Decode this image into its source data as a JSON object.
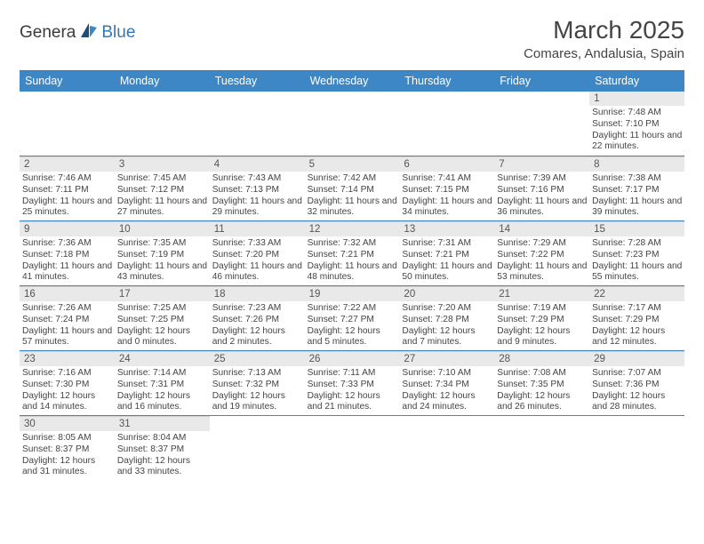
{
  "logo": {
    "part1": "Genera",
    "part2": "Blue"
  },
  "title": "March 2025",
  "location": "Comares, Andalusia, Spain",
  "day_names": [
    "Sunday",
    "Monday",
    "Tuesday",
    "Wednesday",
    "Thursday",
    "Friday",
    "Saturday"
  ],
  "colors": {
    "header_bg": "#3d87c7",
    "header_text": "#ffffff",
    "daynum_bg": "#e9e9e9",
    "daynum_text": "#555555",
    "border": "#3d87c7",
    "text": "#444444",
    "logo_blue": "#3277b3"
  },
  "weeks": [
    [
      {
        "empty": true
      },
      {
        "empty": true
      },
      {
        "empty": true
      },
      {
        "empty": true
      },
      {
        "empty": true
      },
      {
        "empty": true
      },
      {
        "day": "1",
        "sunrise": "Sunrise: 7:48 AM",
        "sunset": "Sunset: 7:10 PM",
        "daylight": "Daylight: 11 hours and 22 minutes."
      }
    ],
    [
      {
        "day": "2",
        "sunrise": "Sunrise: 7:46 AM",
        "sunset": "Sunset: 7:11 PM",
        "daylight": "Daylight: 11 hours and 25 minutes."
      },
      {
        "day": "3",
        "sunrise": "Sunrise: 7:45 AM",
        "sunset": "Sunset: 7:12 PM",
        "daylight": "Daylight: 11 hours and 27 minutes."
      },
      {
        "day": "4",
        "sunrise": "Sunrise: 7:43 AM",
        "sunset": "Sunset: 7:13 PM",
        "daylight": "Daylight: 11 hours and 29 minutes."
      },
      {
        "day": "5",
        "sunrise": "Sunrise: 7:42 AM",
        "sunset": "Sunset: 7:14 PM",
        "daylight": "Daylight: 11 hours and 32 minutes."
      },
      {
        "day": "6",
        "sunrise": "Sunrise: 7:41 AM",
        "sunset": "Sunset: 7:15 PM",
        "daylight": "Daylight: 11 hours and 34 minutes."
      },
      {
        "day": "7",
        "sunrise": "Sunrise: 7:39 AM",
        "sunset": "Sunset: 7:16 PM",
        "daylight": "Daylight: 11 hours and 36 minutes."
      },
      {
        "day": "8",
        "sunrise": "Sunrise: 7:38 AM",
        "sunset": "Sunset: 7:17 PM",
        "daylight": "Daylight: 11 hours and 39 minutes."
      }
    ],
    [
      {
        "day": "9",
        "sunrise": "Sunrise: 7:36 AM",
        "sunset": "Sunset: 7:18 PM",
        "daylight": "Daylight: 11 hours and 41 minutes."
      },
      {
        "day": "10",
        "sunrise": "Sunrise: 7:35 AM",
        "sunset": "Sunset: 7:19 PM",
        "daylight": "Daylight: 11 hours and 43 minutes."
      },
      {
        "day": "11",
        "sunrise": "Sunrise: 7:33 AM",
        "sunset": "Sunset: 7:20 PM",
        "daylight": "Daylight: 11 hours and 46 minutes."
      },
      {
        "day": "12",
        "sunrise": "Sunrise: 7:32 AM",
        "sunset": "Sunset: 7:21 PM",
        "daylight": "Daylight: 11 hours and 48 minutes."
      },
      {
        "day": "13",
        "sunrise": "Sunrise: 7:31 AM",
        "sunset": "Sunset: 7:21 PM",
        "daylight": "Daylight: 11 hours and 50 minutes."
      },
      {
        "day": "14",
        "sunrise": "Sunrise: 7:29 AM",
        "sunset": "Sunset: 7:22 PM",
        "daylight": "Daylight: 11 hours and 53 minutes."
      },
      {
        "day": "15",
        "sunrise": "Sunrise: 7:28 AM",
        "sunset": "Sunset: 7:23 PM",
        "daylight": "Daylight: 11 hours and 55 minutes."
      }
    ],
    [
      {
        "day": "16",
        "sunrise": "Sunrise: 7:26 AM",
        "sunset": "Sunset: 7:24 PM",
        "daylight": "Daylight: 11 hours and 57 minutes."
      },
      {
        "day": "17",
        "sunrise": "Sunrise: 7:25 AM",
        "sunset": "Sunset: 7:25 PM",
        "daylight": "Daylight: 12 hours and 0 minutes."
      },
      {
        "day": "18",
        "sunrise": "Sunrise: 7:23 AM",
        "sunset": "Sunset: 7:26 PM",
        "daylight": "Daylight: 12 hours and 2 minutes."
      },
      {
        "day": "19",
        "sunrise": "Sunrise: 7:22 AM",
        "sunset": "Sunset: 7:27 PM",
        "daylight": "Daylight: 12 hours and 5 minutes."
      },
      {
        "day": "20",
        "sunrise": "Sunrise: 7:20 AM",
        "sunset": "Sunset: 7:28 PM",
        "daylight": "Daylight: 12 hours and 7 minutes."
      },
      {
        "day": "21",
        "sunrise": "Sunrise: 7:19 AM",
        "sunset": "Sunset: 7:29 PM",
        "daylight": "Daylight: 12 hours and 9 minutes."
      },
      {
        "day": "22",
        "sunrise": "Sunrise: 7:17 AM",
        "sunset": "Sunset: 7:29 PM",
        "daylight": "Daylight: 12 hours and 12 minutes."
      }
    ],
    [
      {
        "day": "23",
        "sunrise": "Sunrise: 7:16 AM",
        "sunset": "Sunset: 7:30 PM",
        "daylight": "Daylight: 12 hours and 14 minutes."
      },
      {
        "day": "24",
        "sunrise": "Sunrise: 7:14 AM",
        "sunset": "Sunset: 7:31 PM",
        "daylight": "Daylight: 12 hours and 16 minutes."
      },
      {
        "day": "25",
        "sunrise": "Sunrise: 7:13 AM",
        "sunset": "Sunset: 7:32 PM",
        "daylight": "Daylight: 12 hours and 19 minutes."
      },
      {
        "day": "26",
        "sunrise": "Sunrise: 7:11 AM",
        "sunset": "Sunset: 7:33 PM",
        "daylight": "Daylight: 12 hours and 21 minutes."
      },
      {
        "day": "27",
        "sunrise": "Sunrise: 7:10 AM",
        "sunset": "Sunset: 7:34 PM",
        "daylight": "Daylight: 12 hours and 24 minutes."
      },
      {
        "day": "28",
        "sunrise": "Sunrise: 7:08 AM",
        "sunset": "Sunset: 7:35 PM",
        "daylight": "Daylight: 12 hours and 26 minutes."
      },
      {
        "day": "29",
        "sunrise": "Sunrise: 7:07 AM",
        "sunset": "Sunset: 7:36 PM",
        "daylight": "Daylight: 12 hours and 28 minutes."
      }
    ],
    [
      {
        "day": "30",
        "sunrise": "Sunrise: 8:05 AM",
        "sunset": "Sunset: 8:37 PM",
        "daylight": "Daylight: 12 hours and 31 minutes."
      },
      {
        "day": "31",
        "sunrise": "Sunrise: 8:04 AM",
        "sunset": "Sunset: 8:37 PM",
        "daylight": "Daylight: 12 hours and 33 minutes."
      },
      {
        "empty": true
      },
      {
        "empty": true
      },
      {
        "empty": true
      },
      {
        "empty": true
      },
      {
        "empty": true
      }
    ]
  ]
}
